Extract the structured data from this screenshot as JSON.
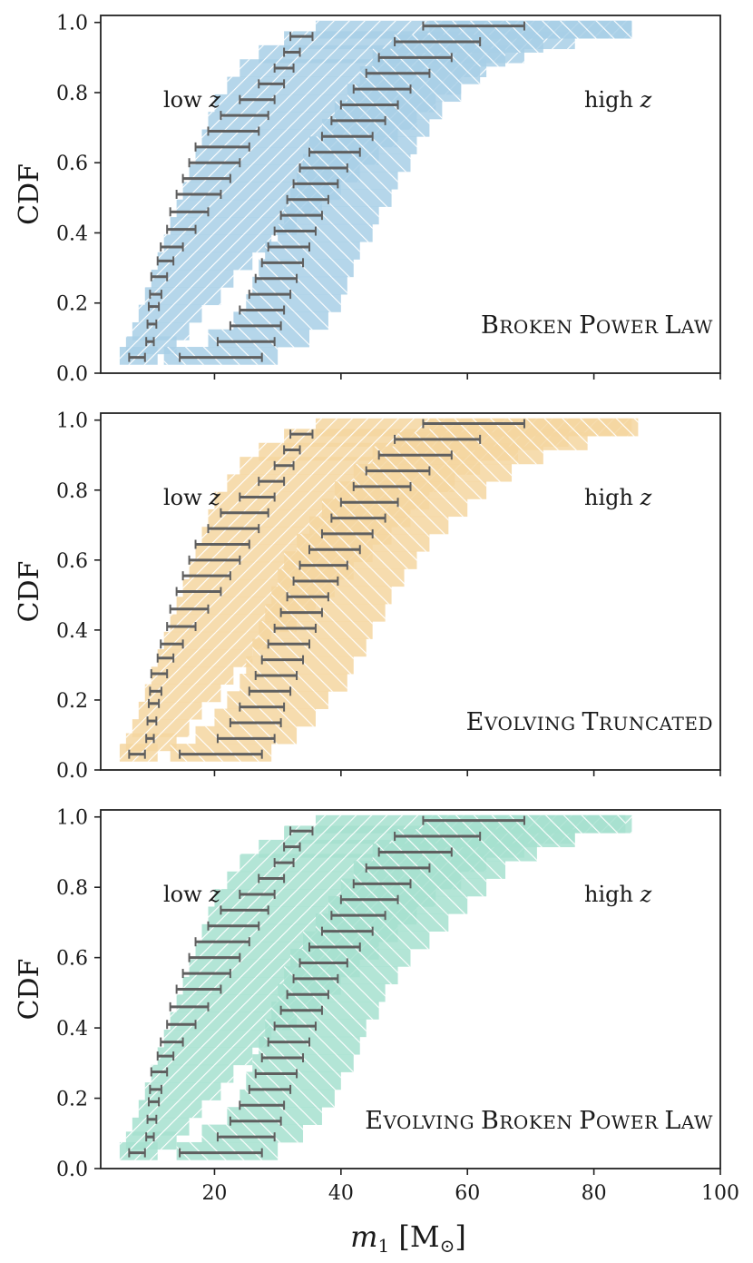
{
  "figure": {
    "xlabel_main": "m",
    "xlabel_sub": "1",
    "xlabel_rest": " [M",
    "xlabel_sun": "⊙",
    "xlabel_close": "]",
    "ylabel": "CDF",
    "corner_low": "low z",
    "corner_high": "high z"
  },
  "chart_data": [
    {
      "type": "area",
      "title": "",
      "annotation": "Broken Power Law",
      "annotation_case": "small-caps",
      "xlabel": "m1 [M⊙]",
      "ylabel": "CDF",
      "xlim": [
        2,
        100
      ],
      "ylim": [
        0,
        1.02
      ],
      "xticks": [
        20,
        40,
        60,
        80,
        100
      ],
      "yticks": [
        0.0,
        0.2,
        0.4,
        0.6,
        0.8,
        1.0
      ],
      "xtick_labels_shown": false,
      "color": "#a8cfe6",
      "band_low": [
        [
          5,
          0.05,
          6
        ],
        [
          6,
          0.08,
          8
        ],
        [
          7,
          0.12,
          9
        ],
        [
          8,
          0.17,
          10
        ],
        [
          9,
          0.22,
          12
        ],
        [
          10,
          0.27,
          13
        ],
        [
          11,
          0.32,
          15
        ],
        [
          12,
          0.37,
          17
        ],
        [
          13,
          0.42,
          20
        ],
        [
          14,
          0.47,
          23
        ],
        [
          15,
          0.52,
          25
        ],
        [
          16,
          0.57,
          27
        ],
        [
          17,
          0.62,
          29
        ],
        [
          18,
          0.67,
          31
        ],
        [
          19,
          0.72,
          33
        ],
        [
          20,
          0.77,
          35
        ],
        [
          22,
          0.82,
          37
        ],
        [
          24,
          0.87,
          39
        ],
        [
          27,
          0.91,
          42
        ],
        [
          31,
          0.95,
          46
        ],
        [
          36,
          0.98,
          50
        ]
      ],
      "band_high": [
        [
          12,
          0.05,
          18
        ],
        [
          19,
          0.1,
          16
        ],
        [
          23,
          0.15,
          15
        ],
        [
          25,
          0.2,
          15
        ],
        [
          26,
          0.25,
          15
        ],
        [
          27,
          0.3,
          15
        ],
        [
          28,
          0.35,
          15
        ],
        [
          30,
          0.4,
          15
        ],
        [
          31,
          0.45,
          15
        ],
        [
          32,
          0.5,
          16
        ],
        [
          33,
          0.55,
          16
        ],
        [
          34,
          0.6,
          17
        ],
        [
          35,
          0.65,
          17
        ],
        [
          37,
          0.7,
          17
        ],
        [
          39,
          0.75,
          17
        ],
        [
          41,
          0.8,
          18
        ],
        [
          43,
          0.85,
          19
        ],
        [
          45,
          0.9,
          21
        ],
        [
          48,
          0.94,
          24
        ],
        [
          54,
          0.98,
          32
        ]
      ],
      "errorbars_low": [
        [
          6.5,
          9,
          0.045
        ],
        [
          9.2,
          10.4,
          0.09
        ],
        [
          9.4,
          10.8,
          0.14
        ],
        [
          9.6,
          11.2,
          0.19
        ],
        [
          9.8,
          11.6,
          0.225
        ],
        [
          10,
          12.5,
          0.275
        ],
        [
          11,
          13.5,
          0.32
        ],
        [
          11.5,
          15,
          0.36
        ],
        [
          12.5,
          17,
          0.41
        ],
        [
          13,
          19,
          0.46
        ],
        [
          14,
          21,
          0.51
        ],
        [
          15,
          22.5,
          0.555
        ],
        [
          16,
          24,
          0.6
        ],
        [
          17,
          25.5,
          0.645
        ],
        [
          19,
          27,
          0.69
        ],
        [
          21,
          28.5,
          0.735
        ],
        [
          24,
          29.5,
          0.78
        ],
        [
          27,
          31,
          0.825
        ],
        [
          29.5,
          32.5,
          0.87
        ],
        [
          31,
          33.5,
          0.915
        ],
        [
          32,
          35.5,
          0.96
        ]
      ],
      "errorbars_high": [
        [
          14.5,
          27.5,
          0.045
        ],
        [
          20.5,
          29.5,
          0.09
        ],
        [
          22.5,
          30.5,
          0.135
        ],
        [
          24,
          31,
          0.18
        ],
        [
          25.5,
          32,
          0.225
        ],
        [
          26.5,
          33,
          0.27
        ],
        [
          27.5,
          34,
          0.315
        ],
        [
          28.5,
          35,
          0.36
        ],
        [
          29.5,
          36,
          0.405
        ],
        [
          30.5,
          37,
          0.45
        ],
        [
          31.5,
          38,
          0.495
        ],
        [
          32.5,
          39.5,
          0.54
        ],
        [
          33.5,
          41,
          0.585
        ],
        [
          35,
          43,
          0.63
        ],
        [
          37,
          45,
          0.675
        ],
        [
          38.5,
          47,
          0.72
        ],
        [
          40,
          49,
          0.765
        ],
        [
          42,
          51,
          0.81
        ],
        [
          44,
          54,
          0.855
        ],
        [
          46,
          57.5,
          0.9
        ],
        [
          48.5,
          62,
          0.945
        ],
        [
          53,
          69,
          0.99
        ]
      ]
    },
    {
      "type": "area",
      "title": "",
      "annotation": "Evolving Truncated",
      "annotation_case": "small-caps",
      "xlabel": "m1 [M⊙]",
      "ylabel": "CDF",
      "xlim": [
        2,
        100
      ],
      "ylim": [
        0,
        1.02
      ],
      "xticks": [
        20,
        40,
        60,
        80,
        100
      ],
      "yticks": [
        0.0,
        0.2,
        0.4,
        0.6,
        0.8,
        1.0
      ],
      "xtick_labels_shown": false,
      "color": "#f5d6a0",
      "band_low": [
        [
          5,
          0.05,
          6
        ],
        [
          6,
          0.08,
          8
        ],
        [
          7,
          0.12,
          9
        ],
        [
          8,
          0.17,
          10
        ],
        [
          9,
          0.22,
          12
        ],
        [
          10,
          0.27,
          13
        ],
        [
          11,
          0.32,
          15
        ],
        [
          12,
          0.37,
          17
        ],
        [
          13,
          0.42,
          20
        ],
        [
          14,
          0.47,
          22
        ],
        [
          15,
          0.52,
          24
        ],
        [
          16,
          0.57,
          26
        ],
        [
          17,
          0.62,
          28
        ],
        [
          18,
          0.67,
          30
        ],
        [
          19,
          0.72,
          32
        ],
        [
          20,
          0.77,
          34
        ],
        [
          22,
          0.82,
          36
        ],
        [
          24,
          0.87,
          38
        ],
        [
          27,
          0.91,
          41
        ],
        [
          31,
          0.95,
          45
        ],
        [
          36,
          0.98,
          50
        ]
      ],
      "band_high": [
        [
          13,
          0.05,
          16
        ],
        [
          17,
          0.1,
          16
        ],
        [
          20,
          0.15,
          16
        ],
        [
          22,
          0.2,
          16
        ],
        [
          24,
          0.25,
          17
        ],
        [
          25,
          0.3,
          17
        ],
        [
          26,
          0.35,
          18
        ],
        [
          27,
          0.4,
          18
        ],
        [
          28,
          0.45,
          19
        ],
        [
          29,
          0.5,
          19
        ],
        [
          30,
          0.55,
          20
        ],
        [
          31,
          0.6,
          21
        ],
        [
          33,
          0.65,
          21
        ],
        [
          35,
          0.7,
          22
        ],
        [
          37,
          0.75,
          23
        ],
        [
          39,
          0.8,
          24
        ],
        [
          42,
          0.85,
          25
        ],
        [
          45,
          0.9,
          27
        ],
        [
          49,
          0.94,
          30
        ],
        [
          54,
          0.98,
          33
        ]
      ],
      "errorbars_low": [
        [
          6.5,
          9,
          0.045
        ],
        [
          9.2,
          10.4,
          0.09
        ],
        [
          9.4,
          10.8,
          0.14
        ],
        [
          9.6,
          11.2,
          0.19
        ],
        [
          9.8,
          11.6,
          0.225
        ],
        [
          10,
          12.5,
          0.275
        ],
        [
          11,
          13.5,
          0.32
        ],
        [
          11.5,
          15,
          0.36
        ],
        [
          12.5,
          17,
          0.41
        ],
        [
          13,
          19,
          0.46
        ],
        [
          14,
          21,
          0.51
        ],
        [
          15,
          22.5,
          0.555
        ],
        [
          16,
          24,
          0.6
        ],
        [
          17,
          25.5,
          0.645
        ],
        [
          19,
          27,
          0.69
        ],
        [
          21,
          28.5,
          0.735
        ],
        [
          24,
          29.5,
          0.78
        ],
        [
          27,
          31,
          0.825
        ],
        [
          29.5,
          32.5,
          0.87
        ],
        [
          31,
          33.5,
          0.915
        ],
        [
          32,
          35.5,
          0.96
        ]
      ],
      "errorbars_high": [
        [
          14.5,
          27.5,
          0.045
        ],
        [
          20.5,
          29.5,
          0.09
        ],
        [
          22.5,
          30.5,
          0.135
        ],
        [
          24,
          31,
          0.18
        ],
        [
          25.5,
          32,
          0.225
        ],
        [
          26.5,
          33,
          0.27
        ],
        [
          27.5,
          34,
          0.315
        ],
        [
          28.5,
          35,
          0.36
        ],
        [
          29.5,
          36,
          0.405
        ],
        [
          30.5,
          37,
          0.45
        ],
        [
          31.5,
          38,
          0.495
        ],
        [
          32.5,
          39.5,
          0.54
        ],
        [
          33.5,
          41,
          0.585
        ],
        [
          35,
          43,
          0.63
        ],
        [
          37,
          45,
          0.675
        ],
        [
          38.5,
          47,
          0.72
        ],
        [
          40,
          49,
          0.765
        ],
        [
          42,
          51,
          0.81
        ],
        [
          44,
          54,
          0.855
        ],
        [
          46,
          57.5,
          0.9
        ],
        [
          48.5,
          62,
          0.945
        ],
        [
          53,
          69,
          0.99
        ]
      ]
    },
    {
      "type": "area",
      "title": "",
      "annotation": "Evolving Broken Power Law",
      "annotation_case": "small-caps",
      "xlabel": "m1 [M⊙]",
      "ylabel": "CDF",
      "xlim": [
        2,
        100
      ],
      "ylim": [
        0,
        1.02
      ],
      "xticks": [
        20,
        40,
        60,
        80,
        100
      ],
      "yticks": [
        0.0,
        0.2,
        0.4,
        0.6,
        0.8,
        1.0
      ],
      "xtick_labels_shown": true,
      "color": "#a6e0cf",
      "band_low": [
        [
          5,
          0.05,
          6
        ],
        [
          6,
          0.08,
          8
        ],
        [
          7,
          0.12,
          9
        ],
        [
          8,
          0.17,
          10
        ],
        [
          9,
          0.22,
          12
        ],
        [
          10,
          0.27,
          13
        ],
        [
          11,
          0.32,
          15
        ],
        [
          12,
          0.37,
          17
        ],
        [
          13,
          0.42,
          20
        ],
        [
          14,
          0.47,
          23
        ],
        [
          15,
          0.52,
          25
        ],
        [
          16,
          0.57,
          27
        ],
        [
          17,
          0.62,
          29
        ],
        [
          18,
          0.67,
          31
        ],
        [
          19,
          0.72,
          33
        ],
        [
          20,
          0.77,
          35
        ],
        [
          22,
          0.82,
          37
        ],
        [
          24,
          0.87,
          39
        ],
        [
          27,
          0.91,
          42
        ],
        [
          31,
          0.95,
          46
        ],
        [
          36,
          0.98,
          50
        ]
      ],
      "band_high": [
        [
          14,
          0.05,
          16
        ],
        [
          18,
          0.1,
          16
        ],
        [
          22,
          0.15,
          15
        ],
        [
          24,
          0.2,
          15
        ],
        [
          25,
          0.25,
          15
        ],
        [
          26,
          0.3,
          16
        ],
        [
          27,
          0.35,
          16
        ],
        [
          28,
          0.4,
          16
        ],
        [
          29,
          0.45,
          17
        ],
        [
          30,
          0.5,
          17
        ],
        [
          31,
          0.55,
          18
        ],
        [
          32,
          0.6,
          19
        ],
        [
          34,
          0.65,
          20
        ],
        [
          36,
          0.7,
          21
        ],
        [
          38,
          0.75,
          22
        ],
        [
          40,
          0.8,
          23
        ],
        [
          42,
          0.85,
          24
        ],
        [
          45,
          0.9,
          26
        ],
        [
          48,
          0.94,
          29
        ],
        [
          53,
          0.98,
          32
        ]
      ],
      "errorbars_low": [
        [
          6.5,
          9,
          0.045
        ],
        [
          9.2,
          10.4,
          0.09
        ],
        [
          9.4,
          10.8,
          0.14
        ],
        [
          9.6,
          11.2,
          0.19
        ],
        [
          9.8,
          11.6,
          0.225
        ],
        [
          10,
          12.5,
          0.275
        ],
        [
          11,
          13.5,
          0.32
        ],
        [
          11.5,
          15,
          0.36
        ],
        [
          12.5,
          17,
          0.41
        ],
        [
          13,
          19,
          0.46
        ],
        [
          14,
          21,
          0.51
        ],
        [
          15,
          22.5,
          0.555
        ],
        [
          16,
          24,
          0.6
        ],
        [
          17,
          25.5,
          0.645
        ],
        [
          19,
          27,
          0.69
        ],
        [
          21,
          28.5,
          0.735
        ],
        [
          24,
          29.5,
          0.78
        ],
        [
          27,
          31,
          0.825
        ],
        [
          29.5,
          32.5,
          0.87
        ],
        [
          31,
          33.5,
          0.915
        ],
        [
          32,
          35.5,
          0.96
        ]
      ],
      "errorbars_high": [
        [
          14.5,
          27.5,
          0.045
        ],
        [
          20.5,
          29.5,
          0.09
        ],
        [
          22.5,
          30.5,
          0.135
        ],
        [
          24,
          31,
          0.18
        ],
        [
          25.5,
          32,
          0.225
        ],
        [
          26.5,
          33,
          0.27
        ],
        [
          27.5,
          34,
          0.315
        ],
        [
          28.5,
          35,
          0.36
        ],
        [
          29.5,
          36,
          0.405
        ],
        [
          30.5,
          37,
          0.45
        ],
        [
          31.5,
          38,
          0.495
        ],
        [
          32.5,
          39.5,
          0.54
        ],
        [
          33.5,
          41,
          0.585
        ],
        [
          35,
          43,
          0.63
        ],
        [
          37,
          45,
          0.675
        ],
        [
          38.5,
          47,
          0.72
        ],
        [
          40,
          49,
          0.765
        ],
        [
          42,
          51,
          0.81
        ],
        [
          44,
          54,
          0.855
        ],
        [
          46,
          57.5,
          0.9
        ],
        [
          48.5,
          62,
          0.945
        ],
        [
          53,
          69,
          0.99
        ]
      ]
    }
  ]
}
